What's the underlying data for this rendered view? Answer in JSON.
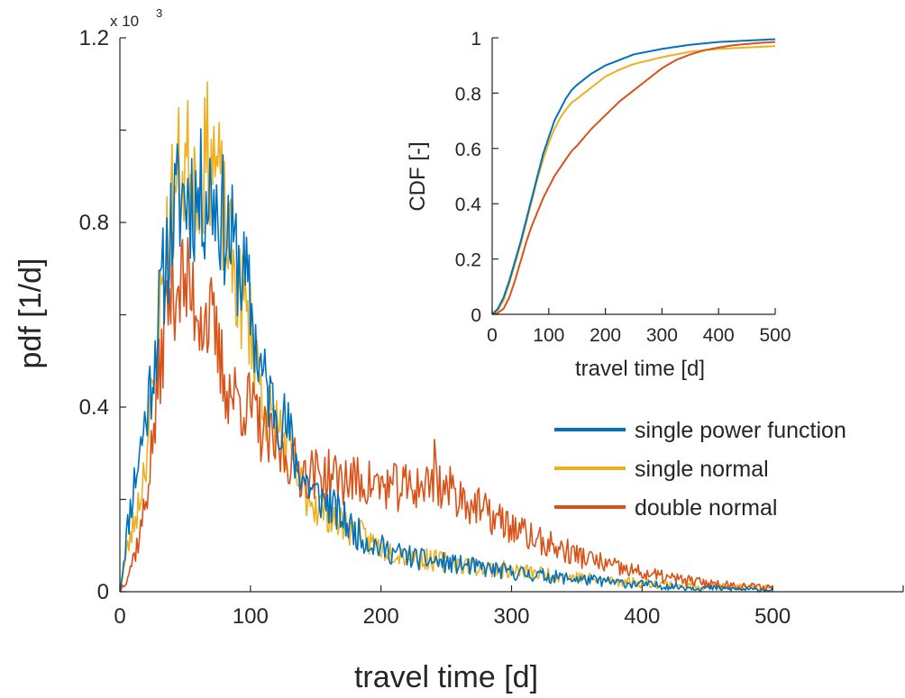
{
  "colors": {
    "single_power_function": "#0072BD",
    "single_normal": "#EDB120",
    "double_normal": "#D95319",
    "axis": "#262626"
  },
  "chart_data": [
    {
      "id": "main",
      "type": "line",
      "title": "",
      "xlabel": "travel time [d]",
      "ylabel": "pdf [1/d]",
      "xlim": [
        0,
        600
      ],
      "ylim": [
        0,
        1.2
      ],
      "y_exponent_label": "x 10",
      "y_exponent_power": "3",
      "xticks": [
        0,
        100,
        200,
        300,
        400,
        500
      ],
      "xtick_labels": [
        "0",
        "100",
        "200",
        "300",
        "400",
        "500"
      ],
      "yticks": [
        0,
        0.4,
        0.8,
        1.2
      ],
      "ytick_labels": [
        "0",
        "0.4",
        "0.8",
        "1.2"
      ],
      "grid": false,
      "legend_position": "right",
      "x_step": 1,
      "series": [
        {
          "name": "single power function",
          "color_key": "single_power_function",
          "control_x": [
            0,
            5,
            10,
            15,
            20,
            25,
            30,
            35,
            40,
            45,
            50,
            55,
            60,
            65,
            70,
            75,
            80,
            85,
            90,
            95,
            100,
            105,
            110,
            115,
            120,
            125,
            130,
            135,
            140,
            150,
            160,
            170,
            180,
            190,
            200,
            210,
            220,
            230,
            240,
            250,
            260,
            270,
            280,
            290,
            300,
            320,
            340,
            360,
            380,
            400,
            420,
            440,
            460,
            480,
            500
          ],
          "control_y": [
            0.0,
            0.12,
            0.22,
            0.3,
            0.38,
            0.48,
            0.6,
            0.72,
            0.8,
            0.85,
            0.86,
            0.86,
            0.85,
            0.86,
            0.87,
            0.84,
            0.8,
            0.76,
            0.72,
            0.68,
            0.62,
            0.52,
            0.46,
            0.42,
            0.4,
            0.37,
            0.34,
            0.28,
            0.25,
            0.21,
            0.19,
            0.16,
            0.13,
            0.11,
            0.095,
            0.085,
            0.078,
            0.07,
            0.066,
            0.062,
            0.058,
            0.054,
            0.05,
            0.046,
            0.042,
            0.036,
            0.03,
            0.025,
            0.02,
            0.016,
            0.012,
            0.009,
            0.007,
            0.005,
            0.004
          ],
          "noise": 0.07,
          "seed": 11
        },
        {
          "name": "single normal",
          "color_key": "single_normal",
          "control_x": [
            0,
            5,
            10,
            15,
            20,
            25,
            30,
            35,
            40,
            45,
            50,
            55,
            60,
            65,
            70,
            75,
            80,
            85,
            90,
            95,
            100,
            105,
            110,
            115,
            120,
            125,
            130,
            135,
            140,
            150,
            160,
            170,
            180,
            190,
            200,
            210,
            220,
            230,
            240,
            250,
            260,
            270,
            280,
            290,
            300,
            320,
            340,
            360,
            380,
            400,
            420,
            440,
            460,
            480,
            500
          ],
          "control_y": [
            0.0,
            0.08,
            0.14,
            0.2,
            0.3,
            0.42,
            0.58,
            0.74,
            0.84,
            0.9,
            0.92,
            0.93,
            0.92,
            0.93,
            0.96,
            0.9,
            0.8,
            0.72,
            0.66,
            0.62,
            0.58,
            0.5,
            0.42,
            0.38,
            0.36,
            0.34,
            0.3,
            0.25,
            0.22,
            0.19,
            0.17,
            0.15,
            0.13,
            0.11,
            0.097,
            0.088,
            0.08,
            0.072,
            0.068,
            0.064,
            0.06,
            0.056,
            0.052,
            0.049,
            0.046,
            0.04,
            0.034,
            0.028,
            0.023,
            0.019,
            0.016,
            0.013,
            0.011,
            0.009,
            0.008
          ],
          "noise": 0.07,
          "seed": 23
        },
        {
          "name": "double normal",
          "color_key": "double_normal",
          "control_x": [
            0,
            5,
            10,
            15,
            20,
            25,
            30,
            35,
            40,
            45,
            50,
            55,
            60,
            65,
            70,
            75,
            80,
            85,
            90,
            95,
            100,
            105,
            110,
            115,
            120,
            125,
            130,
            135,
            140,
            150,
            160,
            170,
            180,
            190,
            200,
            210,
            220,
            230,
            240,
            250,
            260,
            270,
            280,
            290,
            300,
            320,
            340,
            360,
            380,
            400,
            420,
            440,
            460,
            480,
            500
          ],
          "control_y": [
            0.0,
            0.03,
            0.07,
            0.12,
            0.2,
            0.32,
            0.46,
            0.6,
            0.66,
            0.68,
            0.66,
            0.64,
            0.62,
            0.6,
            0.58,
            0.52,
            0.46,
            0.43,
            0.42,
            0.41,
            0.4,
            0.37,
            0.34,
            0.32,
            0.31,
            0.3,
            0.29,
            0.27,
            0.26,
            0.255,
            0.25,
            0.245,
            0.24,
            0.235,
            0.23,
            0.225,
            0.225,
            0.23,
            0.235,
            0.225,
            0.21,
            0.19,
            0.17,
            0.155,
            0.14,
            0.11,
            0.09,
            0.07,
            0.052,
            0.04,
            0.03,
            0.022,
            0.016,
            0.012,
            0.009
          ],
          "noise": 0.07,
          "seed": 37,
          "spikes": [
            [
              241,
              0.33
            ],
            [
              242,
              0.29
            ]
          ]
        }
      ]
    },
    {
      "id": "inset",
      "type": "line",
      "title": "",
      "xlabel": "travel time [d]",
      "ylabel": "CDF [-]",
      "xlim": [
        0,
        500
      ],
      "ylim": [
        0,
        1
      ],
      "xticks": [
        0,
        100,
        200,
        300,
        400,
        500
      ],
      "xtick_labels": [
        "0",
        "100",
        "200",
        "300",
        "400",
        "500"
      ],
      "yticks": [
        0,
        0.2,
        0.4,
        0.6,
        0.8,
        1
      ],
      "ytick_labels": [
        "0",
        "0.2",
        "0.4",
        "0.6",
        "0.8",
        "1"
      ],
      "grid": false,
      "series": [
        {
          "name": "single power function",
          "color_key": "single_power_function",
          "x": [
            0,
            10,
            20,
            30,
            40,
            50,
            60,
            70,
            80,
            90,
            100,
            110,
            120,
            130,
            140,
            150,
            175,
            200,
            225,
            250,
            300,
            350,
            400,
            450,
            500
          ],
          "y": [
            0,
            0.02,
            0.06,
            0.12,
            0.19,
            0.26,
            0.34,
            0.42,
            0.5,
            0.58,
            0.64,
            0.7,
            0.74,
            0.78,
            0.81,
            0.83,
            0.87,
            0.9,
            0.92,
            0.94,
            0.96,
            0.975,
            0.985,
            0.99,
            0.995
          ]
        },
        {
          "name": "single normal",
          "color_key": "single_normal",
          "x": [
            0,
            10,
            20,
            30,
            40,
            50,
            60,
            70,
            80,
            90,
            100,
            110,
            120,
            130,
            140,
            150,
            175,
            200,
            225,
            250,
            300,
            350,
            400,
            450,
            500
          ],
          "y": [
            0,
            0.015,
            0.05,
            0.11,
            0.18,
            0.25,
            0.33,
            0.41,
            0.49,
            0.56,
            0.62,
            0.67,
            0.71,
            0.74,
            0.765,
            0.78,
            0.82,
            0.86,
            0.885,
            0.905,
            0.93,
            0.95,
            0.96,
            0.965,
            0.97
          ]
        },
        {
          "name": "double normal",
          "color_key": "double_normal",
          "x": [
            0,
            10,
            20,
            30,
            40,
            50,
            60,
            70,
            80,
            90,
            100,
            110,
            120,
            130,
            140,
            150,
            175,
            200,
            225,
            250,
            275,
            300,
            325,
            350,
            375,
            400,
            425,
            450,
            475,
            500
          ],
          "y": [
            0,
            0.005,
            0.02,
            0.06,
            0.12,
            0.19,
            0.26,
            0.32,
            0.37,
            0.42,
            0.46,
            0.5,
            0.53,
            0.56,
            0.59,
            0.61,
            0.67,
            0.72,
            0.77,
            0.81,
            0.85,
            0.89,
            0.92,
            0.94,
            0.955,
            0.965,
            0.973,
            0.978,
            0.982,
            0.985
          ]
        }
      ]
    }
  ]
}
